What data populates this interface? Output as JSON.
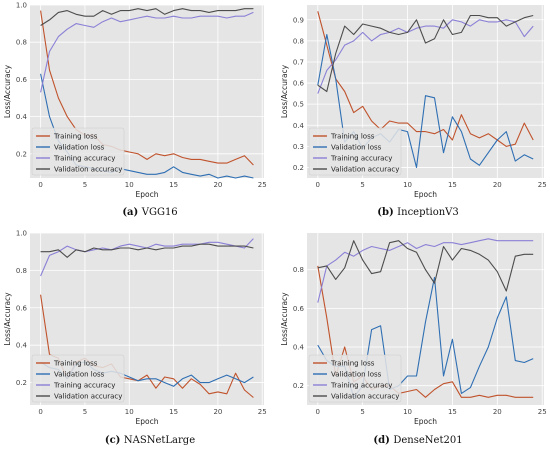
{
  "colors": {
    "training_loss": "#c0532c",
    "validation_loss": "#2f6fb3",
    "training_accuracy": "#8a80d6",
    "validation_accuracy": "#4d4d4d",
    "plot_bg": "#e5e5e5",
    "grid": "#ffffff"
  },
  "chart_data": [
    {
      "type": "line",
      "caption_letter": "(a)",
      "caption_name": "VGG16",
      "xlabel": "Epoch",
      "ylabel": "Loss/Accuracy",
      "xlim": [
        -1.2,
        25.2
      ],
      "ylim": [
        0.07,
        1.0
      ],
      "xticks": [
        0,
        5,
        10,
        15,
        20,
        25
      ],
      "yticks": [
        0.2,
        0.4,
        0.6,
        0.8,
        1.0
      ],
      "ytick_labels": [
        "0.2",
        "0.4",
        "0.6",
        "0.8",
        "1.0"
      ],
      "grid": true,
      "legend_position": "bottom-left",
      "x": [
        0,
        1,
        2,
        3,
        4,
        5,
        6,
        7,
        8,
        9,
        10,
        11,
        12,
        13,
        14,
        15,
        16,
        17,
        18,
        19,
        20,
        21,
        22,
        23,
        24
      ],
      "series": [
        {
          "name": "Training loss",
          "color_key": "training_loss",
          "values": [
            0.97,
            0.65,
            0.5,
            0.4,
            0.33,
            0.3,
            0.3,
            0.25,
            0.24,
            0.22,
            0.21,
            0.2,
            0.17,
            0.2,
            0.19,
            0.2,
            0.18,
            0.17,
            0.17,
            0.16,
            0.15,
            0.15,
            0.17,
            0.19,
            0.14
          ]
        },
        {
          "name": "Validation loss",
          "color_key": "validation_loss",
          "values": [
            0.63,
            0.4,
            0.27,
            0.21,
            0.14,
            0.13,
            0.12,
            0.11,
            0.1,
            0.12,
            0.11,
            0.1,
            0.09,
            0.09,
            0.1,
            0.13,
            0.1,
            0.09,
            0.08,
            0.09,
            0.07,
            0.08,
            0.07,
            0.08,
            0.07
          ]
        },
        {
          "name": "Training accuracy",
          "color_key": "training_accuracy",
          "values": [
            0.53,
            0.75,
            0.83,
            0.87,
            0.9,
            0.89,
            0.88,
            0.91,
            0.93,
            0.91,
            0.92,
            0.93,
            0.94,
            0.93,
            0.93,
            0.94,
            0.93,
            0.93,
            0.94,
            0.94,
            0.94,
            0.93,
            0.94,
            0.94,
            0.96
          ]
        },
        {
          "name": "Validation accuracy",
          "color_key": "validation_accuracy",
          "values": [
            0.89,
            0.92,
            0.96,
            0.97,
            0.95,
            0.94,
            0.94,
            0.97,
            0.95,
            0.97,
            0.97,
            0.98,
            0.97,
            0.98,
            0.95,
            0.97,
            0.98,
            0.97,
            0.97,
            0.96,
            0.97,
            0.97,
            0.97,
            0.98,
            0.98
          ]
        }
      ]
    },
    {
      "type": "line",
      "caption_letter": "(b)",
      "caption_name": "InceptionV3",
      "xlabel": "Epoch",
      "ylabel": "Loss/Accuracy",
      "xlim": [
        -1.2,
        25.2
      ],
      "ylim": [
        0.15,
        0.97
      ],
      "xticks": [
        0,
        5,
        10,
        15,
        20,
        25
      ],
      "yticks": [
        0.2,
        0.3,
        0.4,
        0.5,
        0.6,
        0.7,
        0.8,
        0.9
      ],
      "ytick_labels": [
        "0.2",
        "0.3",
        "0.4",
        "0.5",
        "0.6",
        "0.7",
        "0.8",
        "0.9"
      ],
      "grid": true,
      "legend_position": "bottom-left",
      "x": [
        0,
        1,
        2,
        3,
        4,
        5,
        6,
        7,
        8,
        9,
        10,
        11,
        12,
        13,
        14,
        15,
        16,
        17,
        18,
        19,
        20,
        21,
        22,
        23,
        24
      ],
      "series": [
        {
          "name": "Training loss",
          "color_key": "training_loss",
          "values": [
            0.94,
            0.78,
            0.62,
            0.56,
            0.46,
            0.49,
            0.42,
            0.38,
            0.42,
            0.41,
            0.41,
            0.37,
            0.37,
            0.36,
            0.38,
            0.33,
            0.45,
            0.36,
            0.34,
            0.36,
            0.33,
            0.3,
            0.31,
            0.41,
            0.33
          ]
        },
        {
          "name": "Validation loss",
          "color_key": "validation_loss",
          "values": [
            0.59,
            0.83,
            0.62,
            0.32,
            0.37,
            0.29,
            0.34,
            0.36,
            0.32,
            0.38,
            0.37,
            0.2,
            0.54,
            0.53,
            0.27,
            0.44,
            0.37,
            0.24,
            0.21,
            0.27,
            0.33,
            0.37,
            0.23,
            0.26,
            0.24
          ]
        },
        {
          "name": "Training accuracy",
          "color_key": "training_accuracy",
          "values": [
            0.55,
            0.66,
            0.71,
            0.78,
            0.8,
            0.84,
            0.8,
            0.83,
            0.84,
            0.86,
            0.84,
            0.86,
            0.87,
            0.87,
            0.86,
            0.9,
            0.89,
            0.87,
            0.9,
            0.89,
            0.89,
            0.9,
            0.89,
            0.82,
            0.87
          ]
        },
        {
          "name": "Validation accuracy",
          "color_key": "validation_accuracy",
          "values": [
            0.59,
            0.56,
            0.74,
            0.87,
            0.83,
            0.88,
            0.87,
            0.86,
            0.84,
            0.83,
            0.84,
            0.9,
            0.79,
            0.81,
            0.9,
            0.83,
            0.84,
            0.92,
            0.92,
            0.91,
            0.91,
            0.87,
            0.89,
            0.91,
            0.92
          ]
        }
      ]
    },
    {
      "type": "line",
      "caption_letter": "(c)",
      "caption_name": "NASNetLarge",
      "xlabel": "Epoch",
      "ylabel": "Loss/Accuracy",
      "xlim": [
        -1.2,
        25.2
      ],
      "ylim": [
        0.08,
        1.0
      ],
      "xticks": [
        0,
        5,
        10,
        15,
        20,
        25
      ],
      "yticks": [
        0.2,
        0.4,
        0.6,
        0.8,
        1.0
      ],
      "ytick_labels": [
        "0.2",
        "0.4",
        "0.6",
        "0.8",
        "1.0"
      ],
      "grid": true,
      "legend_position": "bottom-left",
      "x": [
        0,
        1,
        2,
        3,
        4,
        5,
        6,
        7,
        8,
        9,
        10,
        11,
        12,
        13,
        14,
        15,
        16,
        17,
        18,
        19,
        20,
        21,
        22,
        23,
        24
      ],
      "series": [
        {
          "name": "Training loss",
          "color_key": "training_loss",
          "values": [
            0.67,
            0.35,
            0.33,
            0.22,
            0.31,
            0.33,
            0.29,
            0.28,
            0.3,
            0.23,
            0.22,
            0.21,
            0.24,
            0.17,
            0.23,
            0.22,
            0.17,
            0.22,
            0.19,
            0.14,
            0.15,
            0.14,
            0.25,
            0.16,
            0.12
          ]
        },
        {
          "name": "Validation loss",
          "color_key": "validation_loss",
          "values": [
            0.31,
            0.28,
            0.27,
            0.22,
            0.3,
            0.31,
            0.27,
            0.25,
            0.26,
            0.25,
            0.23,
            0.21,
            0.22,
            0.22,
            0.2,
            0.18,
            0.22,
            0.24,
            0.2,
            0.2,
            0.22,
            0.24,
            0.22,
            0.2,
            0.23
          ]
        },
        {
          "name": "Training accuracy",
          "color_key": "training_accuracy",
          "values": [
            0.77,
            0.88,
            0.9,
            0.93,
            0.91,
            0.9,
            0.91,
            0.92,
            0.91,
            0.93,
            0.94,
            0.93,
            0.92,
            0.94,
            0.93,
            0.93,
            0.94,
            0.94,
            0.94,
            0.95,
            0.95,
            0.94,
            0.93,
            0.92,
            0.97
          ]
        },
        {
          "name": "Validation accuracy",
          "color_key": "validation_accuracy",
          "values": [
            0.9,
            0.9,
            0.91,
            0.87,
            0.91,
            0.9,
            0.92,
            0.91,
            0.91,
            0.92,
            0.92,
            0.91,
            0.92,
            0.91,
            0.92,
            0.92,
            0.93,
            0.93,
            0.94,
            0.94,
            0.93,
            0.93,
            0.93,
            0.93,
            0.92
          ]
        }
      ]
    },
    {
      "type": "line",
      "caption_letter": "(d)",
      "caption_name": "DenseNet201",
      "xlabel": "Epoch",
      "ylabel": "Loss/Accuracy",
      "xlim": [
        -1.2,
        25.2
      ],
      "ylim": [
        0.1,
        0.99
      ],
      "xticks": [
        0,
        5,
        10,
        15,
        20,
        25
      ],
      "yticks": [
        0.2,
        0.4,
        0.6,
        0.8
      ],
      "ytick_labels": [
        "0.2",
        "0.4",
        "0.6",
        "0.8"
      ],
      "grid": true,
      "legend_position": "bottom-left",
      "x": [
        0,
        1,
        2,
        3,
        4,
        5,
        6,
        7,
        8,
        9,
        10,
        11,
        12,
        13,
        14,
        15,
        16,
        17,
        18,
        19,
        20,
        21,
        22,
        23,
        24
      ],
      "series": [
        {
          "name": "Training loss",
          "color_key": "training_loss",
          "values": [
            0.82,
            0.55,
            0.25,
            0.4,
            0.22,
            0.25,
            0.18,
            0.2,
            0.2,
            0.16,
            0.17,
            0.18,
            0.14,
            0.18,
            0.21,
            0.22,
            0.14,
            0.14,
            0.15,
            0.14,
            0.15,
            0.15,
            0.14,
            0.14,
            0.14
          ]
        },
        {
          "name": "Validation loss",
          "color_key": "validation_loss",
          "values": [
            0.41,
            0.33,
            0.3,
            0.3,
            0.14,
            0.2,
            0.49,
            0.51,
            0.18,
            0.2,
            0.25,
            0.25,
            0.53,
            0.76,
            0.25,
            0.44,
            0.16,
            0.19,
            0.3,
            0.4,
            0.55,
            0.66,
            0.33,
            0.32,
            0.34
          ]
        },
        {
          "name": "Training accuracy",
          "color_key": "training_accuracy",
          "values": [
            0.63,
            0.82,
            0.85,
            0.89,
            0.87,
            0.9,
            0.92,
            0.91,
            0.9,
            0.92,
            0.94,
            0.91,
            0.93,
            0.92,
            0.94,
            0.94,
            0.93,
            0.94,
            0.95,
            0.96,
            0.95,
            0.95,
            0.95,
            0.95,
            0.95
          ]
        },
        {
          "name": "Validation accuracy",
          "color_key": "validation_accuracy",
          "values": [
            0.81,
            0.82,
            0.75,
            0.81,
            0.95,
            0.85,
            0.78,
            0.79,
            0.94,
            0.95,
            0.91,
            0.89,
            0.8,
            0.73,
            0.92,
            0.85,
            0.91,
            0.9,
            0.88,
            0.85,
            0.79,
            0.69,
            0.87,
            0.88,
            0.88
          ]
        }
      ]
    }
  ]
}
